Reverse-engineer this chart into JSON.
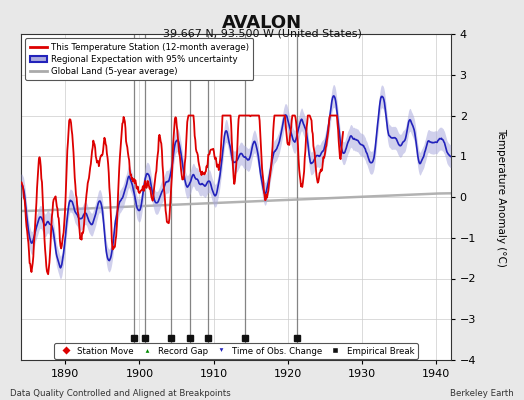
{
  "title": "AVALON",
  "subtitle": "39.667 N, 93.500 W (United States)",
  "ylabel": "Temperature Anomaly (°C)",
  "xlabel_left": "Data Quality Controlled and Aligned at Breakpoints",
  "xlabel_right": "Berkeley Earth",
  "ylim": [
    -4,
    4
  ],
  "xlim": [
    1884,
    1942
  ],
  "xticks": [
    1890,
    1900,
    1910,
    1920,
    1930,
    1940
  ],
  "yticks": [
    -4,
    -3,
    -2,
    -1,
    0,
    1,
    2,
    3,
    4
  ],
  "grid_color": "#cccccc",
  "bg_color": "#e8e8e8",
  "plot_bg_color": "#ffffff",
  "red_line_color": "#dd0000",
  "blue_line_color": "#2222bb",
  "blue_fill_color": "#aaaadd",
  "gray_line_color": "#aaaaaa",
  "vertical_line_color": "#666666",
  "vertical_lines_x": [
    1899.2,
    1900.8,
    1904.2,
    1906.8,
    1909.2,
    1914.2,
    1921.2
  ],
  "empirical_breaks_x": [
    1899.2,
    1900.8,
    1904.2,
    1906.8,
    1909.2,
    1914.2,
    1921.2
  ],
  "legend_items": [
    {
      "label": "This Temperature Station (12-month average)",
      "color": "#dd0000",
      "lw": 2.0
    },
    {
      "label": "Regional Expectation with 95% uncertainty",
      "color": "#2222bb",
      "lw": 1.5
    },
    {
      "label": "Global Land (5-year average)",
      "color": "#aaaaaa",
      "lw": 2.0
    }
  ],
  "bottom_legend": [
    {
      "label": "Station Move",
      "marker": "D",
      "color": "#dd0000"
    },
    {
      "label": "Record Gap",
      "marker": "^",
      "color": "#008800"
    },
    {
      "label": "Time of Obs. Change",
      "marker": "v",
      "color": "#2222bb"
    },
    {
      "label": "Empirical Break",
      "marker": "s",
      "color": "#111111"
    }
  ],
  "seed": 42
}
